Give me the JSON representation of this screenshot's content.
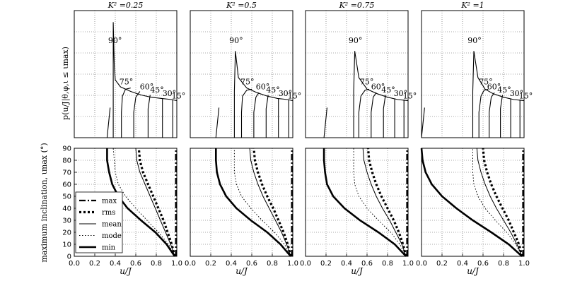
{
  "figure": {
    "top_titles": [
      "K² =0.25",
      "K² =0.5",
      "K² =0.75",
      "K² =1"
    ],
    "top_ylabel": "p(u/J|θ,φ,ι ≤ ιmax)",
    "bottom_ylabel": "maximum inclination, ιmax (°)",
    "xlabel": "u/J",
    "legend": [
      "max",
      "rms",
      "mean",
      "mode",
      "min"
    ]
  },
  "chart_data": [
    {
      "type": "line",
      "panel": "top",
      "title": "K² =0.25",
      "xlim": [
        0,
        1
      ],
      "grid": true,
      "curve_labels": [
        "90°",
        "75°",
        "60°",
        "45°",
        "30°",
        "15°"
      ],
      "peak_x": 0.38,
      "min_x": 0.32,
      "series": [
        {
          "label": "90°",
          "x": [
            0.38,
            0.38,
            0.38,
            0.39,
            0.4,
            0.45,
            0.55,
            0.65,
            0.75,
            0.85,
            0.95,
            1.0
          ],
          "y": [
            0.0,
            0.55,
            1.0,
            0.62,
            0.5,
            0.44,
            0.4,
            0.37,
            0.35,
            0.34,
            0.33,
            0.32
          ]
        },
        {
          "label": "75°",
          "x": [
            0.46,
            0.46,
            0.47,
            0.5,
            0.55
          ],
          "y": [
            0.0,
            0.22,
            0.36,
            0.42,
            0.43
          ]
        },
        {
          "label": "60°",
          "x": [
            0.58,
            0.58,
            0.6,
            0.64
          ],
          "y": [
            0.0,
            0.22,
            0.35,
            0.4
          ]
        },
        {
          "label": "45°",
          "x": [
            0.72,
            0.72,
            0.74
          ],
          "y": [
            0.0,
            0.25,
            0.37
          ]
        },
        {
          "label": "30°",
          "x": [
            0.86,
            0.86
          ],
          "y": [
            0.0,
            0.34
          ]
        },
        {
          "label": "15°",
          "x": [
            0.96,
            0.96
          ],
          "y": [
            0.0,
            0.33
          ]
        }
      ]
    },
    {
      "type": "line",
      "panel": "top",
      "title": "K² =0.5",
      "xlim": [
        0,
        1
      ],
      "grid": true,
      "curve_labels": [
        "90°",
        "75°",
        "60°",
        "45°",
        "30°",
        "15°"
      ],
      "peak_x": 0.43,
      "min_x": 0.25,
      "series": [
        {
          "label": "90°",
          "x": [
            0.43,
            0.43,
            0.44,
            0.47,
            0.55,
            0.65,
            0.75,
            0.85,
            0.95,
            1.0
          ],
          "y": [
            0.0,
            0.4,
            0.75,
            0.52,
            0.43,
            0.39,
            0.36,
            0.34,
            0.33,
            0.32
          ]
        },
        {
          "label": "75°",
          "x": [
            0.5,
            0.5,
            0.51,
            0.55,
            0.6
          ],
          "y": [
            0.0,
            0.22,
            0.36,
            0.41,
            0.42
          ]
        },
        {
          "label": "60°",
          "x": [
            0.62,
            0.62,
            0.64,
            0.67
          ],
          "y": [
            0.0,
            0.22,
            0.35,
            0.39
          ]
        },
        {
          "label": "45°",
          "x": [
            0.74,
            0.74,
            0.76
          ],
          "y": [
            0.0,
            0.25,
            0.37
          ]
        },
        {
          "label": "30°",
          "x": [
            0.86,
            0.86
          ],
          "y": [
            0.0,
            0.34
          ]
        },
        {
          "label": "15°",
          "x": [
            0.96,
            0.96
          ],
          "y": [
            0.0,
            0.33
          ]
        }
      ]
    },
    {
      "type": "line",
      "panel": "top",
      "title": "K² =0.75",
      "xlim": [
        0,
        1
      ],
      "grid": true,
      "curve_labels": [
        "90°",
        "75°",
        "60°",
        "45°",
        "30°",
        "15°"
      ],
      "peak_x": 0.47,
      "min_x": 0.18,
      "series": [
        {
          "label": "90°",
          "x": [
            0.47,
            0.47,
            0.48,
            0.52,
            0.6,
            0.7,
            0.8,
            0.9,
            1.0
          ],
          "y": [
            0.0,
            0.4,
            0.75,
            0.52,
            0.42,
            0.38,
            0.35,
            0.33,
            0.32
          ]
        },
        {
          "label": "75°",
          "x": [
            0.52,
            0.52,
            0.54,
            0.58,
            0.62
          ],
          "y": [
            0.0,
            0.22,
            0.36,
            0.41,
            0.42
          ]
        },
        {
          "label": "60°",
          "x": [
            0.64,
            0.64,
            0.66,
            0.69
          ],
          "y": [
            0.0,
            0.22,
            0.35,
            0.39
          ]
        },
        {
          "label": "45°",
          "x": [
            0.76,
            0.76,
            0.78
          ],
          "y": [
            0.0,
            0.25,
            0.37
          ]
        },
        {
          "label": "30°",
          "x": [
            0.87,
            0.87
          ],
          "y": [
            0.0,
            0.34
          ]
        },
        {
          "label": "15°",
          "x": [
            0.96,
            0.96
          ],
          "y": [
            0.0,
            0.33
          ]
        }
      ]
    },
    {
      "type": "line",
      "panel": "top",
      "title": "K² =1",
      "xlim": [
        0,
        1
      ],
      "grid": true,
      "curve_labels": [
        "90°",
        "75°",
        "60°",
        "45°",
        "30°",
        "15°"
      ],
      "peak_x": 0.5,
      "min_x": 0.0,
      "series": [
        {
          "label": "90°",
          "x": [
            0.5,
            0.5,
            0.51,
            0.55,
            0.62,
            0.7,
            0.8,
            0.9,
            1.0
          ],
          "y": [
            0.0,
            0.4,
            0.75,
            0.52,
            0.42,
            0.38,
            0.35,
            0.33,
            0.32
          ]
        },
        {
          "label": "75°",
          "x": [
            0.56,
            0.56,
            0.58,
            0.61,
            0.65
          ],
          "y": [
            0.0,
            0.22,
            0.36,
            0.41,
            0.42
          ]
        },
        {
          "label": "60°",
          "x": [
            0.66,
            0.66,
            0.68,
            0.71
          ],
          "y": [
            0.0,
            0.22,
            0.35,
            0.39
          ]
        },
        {
          "label": "45°",
          "x": [
            0.77,
            0.77,
            0.79
          ],
          "y": [
            0.0,
            0.25,
            0.37
          ]
        },
        {
          "label": "30°",
          "x": [
            0.87,
            0.87
          ],
          "y": [
            0.0,
            0.34
          ]
        },
        {
          "label": "15°",
          "x": [
            0.96,
            0.96
          ],
          "y": [
            0.0,
            0.33
          ]
        }
      ]
    },
    {
      "type": "line",
      "panel": "bottom",
      "title": "K² =0.25",
      "xlim": [
        0,
        1
      ],
      "ylim": [
        0,
        90
      ],
      "grid": true,
      "xticks": [
        "0.0",
        "0.2",
        "0.4",
        "0.6",
        "0.8",
        "1.0"
      ],
      "yticks": [
        "0",
        "10",
        "20",
        "30",
        "40",
        "50",
        "60",
        "70",
        "80",
        "90"
      ],
      "series": [
        {
          "name": "max",
          "x": [
            0.99,
            0.99,
            0.99,
            0.99,
            0.99,
            0.99,
            0.99,
            0.99,
            0.99,
            0.99
          ],
          "y": [
            0,
            10,
            20,
            30,
            40,
            50,
            60,
            70,
            80,
            90
          ]
        },
        {
          "name": "rms",
          "x": [
            0.98,
            0.95,
            0.91,
            0.87,
            0.82,
            0.77,
            0.72,
            0.67,
            0.64,
            0.63
          ],
          "y": [
            0,
            10,
            20,
            30,
            40,
            50,
            60,
            70,
            80,
            90
          ]
        },
        {
          "name": "mean",
          "x": [
            0.98,
            0.94,
            0.89,
            0.84,
            0.79,
            0.74,
            0.69,
            0.64,
            0.61,
            0.6
          ],
          "y": [
            0,
            10,
            20,
            30,
            40,
            50,
            60,
            70,
            80,
            90
          ]
        },
        {
          "name": "mode",
          "x": [
            0.98,
            0.92,
            0.82,
            0.71,
            0.6,
            0.5,
            0.43,
            0.4,
            0.39,
            0.38
          ],
          "y": [
            0,
            10,
            20,
            30,
            40,
            50,
            60,
            70,
            80,
            90
          ]
        },
        {
          "name": "min",
          "x": [
            0.98,
            0.9,
            0.79,
            0.65,
            0.52,
            0.43,
            0.37,
            0.34,
            0.32,
            0.32
          ],
          "y": [
            0,
            10,
            20,
            30,
            40,
            50,
            60,
            70,
            80,
            90
          ]
        }
      ]
    },
    {
      "type": "line",
      "panel": "bottom",
      "title": "K² =0.5",
      "xlim": [
        0,
        1
      ],
      "ylim": [
        0,
        90
      ],
      "grid": true,
      "xticks": [
        "0.0",
        "0.2",
        "0.4",
        "0.6",
        "0.8",
        "1.0"
      ],
      "yticks": [],
      "series": [
        {
          "name": "max",
          "x": [
            0.99,
            0.99,
            0.99,
            0.99,
            0.99,
            0.99,
            0.99,
            0.99,
            0.99,
            0.99
          ],
          "y": [
            0,
            10,
            20,
            30,
            40,
            50,
            60,
            70,
            80,
            90
          ]
        },
        {
          "name": "rms",
          "x": [
            0.98,
            0.95,
            0.91,
            0.86,
            0.81,
            0.75,
            0.7,
            0.66,
            0.63,
            0.62
          ],
          "y": [
            0,
            10,
            20,
            30,
            40,
            50,
            60,
            70,
            80,
            90
          ]
        },
        {
          "name": "mean",
          "x": [
            0.98,
            0.94,
            0.89,
            0.83,
            0.77,
            0.71,
            0.66,
            0.62,
            0.59,
            0.58
          ],
          "y": [
            0,
            10,
            20,
            30,
            40,
            50,
            60,
            70,
            80,
            90
          ]
        },
        {
          "name": "mode",
          "x": [
            0.98,
            0.92,
            0.82,
            0.7,
            0.59,
            0.5,
            0.45,
            0.43,
            0.43,
            0.43
          ],
          "y": [
            0,
            10,
            20,
            30,
            40,
            50,
            60,
            70,
            80,
            90
          ]
        },
        {
          "name": "min",
          "x": [
            0.98,
            0.88,
            0.75,
            0.59,
            0.45,
            0.35,
            0.29,
            0.26,
            0.25,
            0.25
          ],
          "y": [
            0,
            10,
            20,
            30,
            40,
            50,
            60,
            70,
            80,
            90
          ]
        }
      ]
    },
    {
      "type": "line",
      "panel": "bottom",
      "title": "K² =0.75",
      "xlim": [
        0,
        1
      ],
      "ylim": [
        0,
        90
      ],
      "grid": true,
      "xticks": [
        "0.0",
        "0.2",
        "0.4",
        "0.6",
        "0.8",
        "1.0"
      ],
      "yticks": [],
      "series": [
        {
          "name": "max",
          "x": [
            0.99,
            0.99,
            0.99,
            0.99,
            0.99,
            0.99,
            0.99,
            0.99,
            0.99,
            0.99
          ],
          "y": [
            0,
            10,
            20,
            30,
            40,
            50,
            60,
            70,
            80,
            90
          ]
        },
        {
          "name": "rms",
          "x": [
            0.98,
            0.95,
            0.91,
            0.86,
            0.8,
            0.74,
            0.69,
            0.65,
            0.62,
            0.61
          ],
          "y": [
            0,
            10,
            20,
            30,
            40,
            50,
            60,
            70,
            80,
            90
          ]
        },
        {
          "name": "mean",
          "x": [
            0.98,
            0.94,
            0.88,
            0.82,
            0.75,
            0.69,
            0.64,
            0.6,
            0.57,
            0.56
          ],
          "y": [
            0,
            10,
            20,
            30,
            40,
            50,
            60,
            70,
            80,
            90
          ]
        },
        {
          "name": "mode",
          "x": [
            0.98,
            0.92,
            0.83,
            0.71,
            0.6,
            0.52,
            0.48,
            0.47,
            0.47,
            0.47
          ],
          "y": [
            0,
            10,
            20,
            30,
            40,
            50,
            60,
            70,
            80,
            90
          ]
        },
        {
          "name": "min",
          "x": [
            0.98,
            0.87,
            0.71,
            0.53,
            0.38,
            0.27,
            0.21,
            0.19,
            0.18,
            0.18
          ],
          "y": [
            0,
            10,
            20,
            30,
            40,
            50,
            60,
            70,
            80,
            90
          ]
        }
      ]
    },
    {
      "type": "line",
      "panel": "bottom",
      "title": "K² =1",
      "xlim": [
        0,
        1
      ],
      "ylim": [
        0,
        90
      ],
      "grid": true,
      "xticks": [
        "0.0",
        "0.2",
        "0.4",
        "0.6",
        "0.8",
        "1.0"
      ],
      "yticks": [],
      "series": [
        {
          "name": "max",
          "x": [
            0.99,
            0.99,
            0.99,
            0.99,
            0.99,
            0.99,
            0.99,
            0.99,
            0.99,
            0.99
          ],
          "y": [
            0,
            10,
            20,
            30,
            40,
            50,
            60,
            70,
            80,
            90
          ]
        },
        {
          "name": "rms",
          "x": [
            0.98,
            0.95,
            0.9,
            0.85,
            0.79,
            0.73,
            0.68,
            0.64,
            0.61,
            0.6
          ],
          "y": [
            0,
            10,
            20,
            30,
            40,
            50,
            60,
            70,
            80,
            90
          ]
        },
        {
          "name": "mean",
          "x": [
            0.98,
            0.93,
            0.87,
            0.8,
            0.73,
            0.67,
            0.62,
            0.58,
            0.55,
            0.54
          ],
          "y": [
            0,
            10,
            20,
            30,
            40,
            50,
            60,
            70,
            80,
            90
          ]
        },
        {
          "name": "mode",
          "x": [
            0.98,
            0.92,
            0.83,
            0.72,
            0.62,
            0.55,
            0.51,
            0.5,
            0.5,
            0.5
          ],
          "y": [
            0,
            10,
            20,
            30,
            40,
            50,
            60,
            70,
            80,
            90
          ]
        },
        {
          "name": "min",
          "x": [
            0.98,
            0.85,
            0.68,
            0.5,
            0.34,
            0.2,
            0.1,
            0.04,
            0.01,
            0.0
          ],
          "y": [
            0,
            10,
            20,
            30,
            40,
            50,
            60,
            70,
            80,
            90
          ]
        }
      ]
    }
  ]
}
